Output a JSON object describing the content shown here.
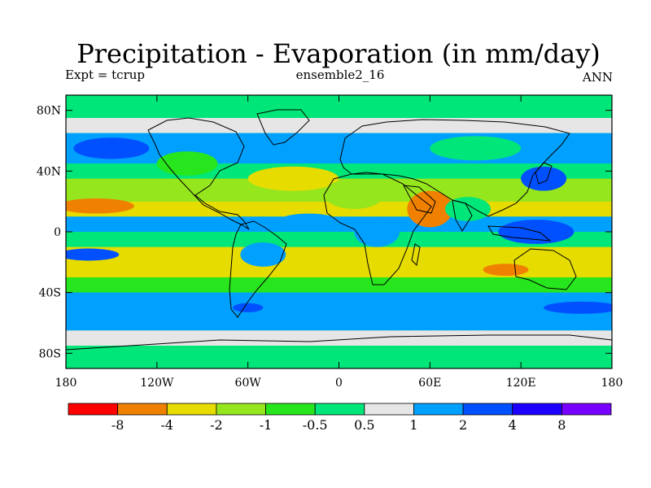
{
  "chart_data": {
    "type": "heatmap",
    "title": "Precipitation - Evaporation (in mm/day)",
    "subtitle_left": "Expt = tcrup",
    "subtitle_center": "ensemble2_16",
    "subtitle_right": "ANN",
    "x_ticks": [
      "180",
      "120W",
      "60W",
      "0",
      "60E",
      "120E",
      "180"
    ],
    "y_ticks": [
      "80N",
      "40N",
      "0",
      "40S",
      "80S"
    ],
    "xlim": [
      -180,
      180
    ],
    "ylim": [
      -90,
      90
    ],
    "colorbar": {
      "colors": [
        "#ff0000",
        "#f08000",
        "#e6dc00",
        "#96e61e",
        "#28e61e",
        "#00e678",
        "#e6e6e6",
        "#00a0ff",
        "#0050ff",
        "#1e00ff",
        "#7800ff"
      ],
      "labels": [
        "-8",
        "-4",
        "-2",
        "-1",
        "-0.5",
        "0.5",
        "1",
        "2",
        "4",
        "8"
      ]
    },
    "zonal_bands": [
      {
        "lat_from": 90,
        "lat_to": 75,
        "color_index": 5
      },
      {
        "lat_from": 75,
        "lat_to": 65,
        "color_index": 6
      },
      {
        "lat_from": 65,
        "lat_to": 45,
        "color_index": 7
      },
      {
        "lat_from": 45,
        "lat_to": 35,
        "color_index": 5
      },
      {
        "lat_from": 35,
        "lat_to": 20,
        "color_index": 3
      },
      {
        "lat_from": 20,
        "lat_to": 10,
        "color_index": 2
      },
      {
        "lat_from": 10,
        "lat_to": 0,
        "color_index": 7
      },
      {
        "lat_from": 0,
        "lat_to": -10,
        "color_index": 5
      },
      {
        "lat_from": -10,
        "lat_to": -30,
        "color_index": 2
      },
      {
        "lat_from": -30,
        "lat_to": -40,
        "color_index": 4
      },
      {
        "lat_from": -40,
        "lat_to": -65,
        "color_index": 7
      },
      {
        "lat_from": -65,
        "lat_to": -75,
        "color_index": 6
      },
      {
        "lat_from": -75,
        "lat_to": -90,
        "color_index": 5
      }
    ],
    "features": [
      {
        "lon": -150,
        "lat": 55,
        "rx": 25,
        "ry": 7,
        "color_index": 8
      },
      {
        "lon": -160,
        "lat": 17,
        "rx": 25,
        "ry": 5,
        "color_index": 1
      },
      {
        "lon": -165,
        "lat": -15,
        "rx": 20,
        "ry": 4,
        "color_index": 8
      },
      {
        "lon": -30,
        "lat": 35,
        "rx": 30,
        "ry": 8,
        "color_index": 2
      },
      {
        "lon": -20,
        "lat": 8,
        "rx": 18,
        "ry": 4,
        "color_index": 7
      },
      {
        "lon": 10,
        "lat": 25,
        "rx": 20,
        "ry": 10,
        "color_index": 3
      },
      {
        "lon": 25,
        "lat": 0,
        "rx": 15,
        "ry": 10,
        "color_index": 7
      },
      {
        "lon": 60,
        "lat": 15,
        "rx": 15,
        "ry": 12,
        "color_index": 1
      },
      {
        "lon": 85,
        "lat": 15,
        "rx": 15,
        "ry": 8,
        "color_index": 5
      },
      {
        "lon": 130,
        "lat": 0,
        "rx": 25,
        "ry": 8,
        "color_index": 8
      },
      {
        "lon": 135,
        "lat": 35,
        "rx": 15,
        "ry": 8,
        "color_index": 8
      },
      {
        "lon": 110,
        "lat": -25,
        "rx": 15,
        "ry": 4,
        "color_index": 1
      },
      {
        "lon": -50,
        "lat": -15,
        "rx": 15,
        "ry": 8,
        "color_index": 7
      },
      {
        "lon": -60,
        "lat": -50,
        "rx": 10,
        "ry": 3,
        "color_index": 8
      },
      {
        "lon": 160,
        "lat": -50,
        "rx": 25,
        "ry": 4,
        "color_index": 8
      },
      {
        "lon": -100,
        "lat": 45,
        "rx": 20,
        "ry": 8,
        "color_index": 4
      },
      {
        "lon": 90,
        "lat": 55,
        "rx": 30,
        "ry": 8,
        "color_index": 5
      }
    ]
  }
}
